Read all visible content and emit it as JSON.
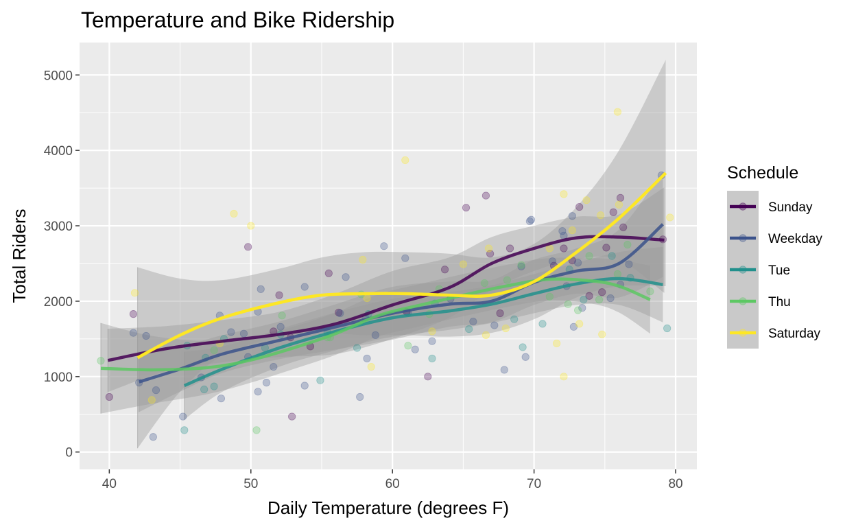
{
  "chart_data": {
    "type": "scatter",
    "title": "Temperature and Bike Ridership",
    "xlabel": "Daily Temperature (degrees F)",
    "ylabel": "Total Riders",
    "xlim": [
      37.9,
      81.5
    ],
    "ylim": [
      -230,
      5430
    ],
    "x_ticks": [
      40,
      50,
      60,
      70,
      80
    ],
    "y_ticks": [
      0,
      1000,
      2000,
      3000,
      4000,
      5000
    ],
    "grid": true,
    "legend": {
      "title": "Schedule",
      "placement": "right"
    },
    "series": [
      {
        "name": "Sunday",
        "color": "#440154",
        "points": [
          [
            40,
            730
          ],
          [
            41.7,
            1830
          ],
          [
            49.8,
            2720
          ],
          [
            51.6,
            1600
          ],
          [
            52,
            2080
          ],
          [
            52.8,
            1520
          ],
          [
            52.9,
            470
          ],
          [
            54.2,
            1400
          ],
          [
            55.5,
            2370
          ],
          [
            56.2,
            1850
          ],
          [
            61,
            1860
          ],
          [
            62.5,
            1000
          ],
          [
            63.7,
            2420
          ],
          [
            65.2,
            3240
          ],
          [
            66.6,
            3400
          ],
          [
            66.9,
            2630
          ],
          [
            67.6,
            1840
          ],
          [
            68.3,
            2700
          ],
          [
            71.4,
            2470
          ],
          [
            72.1,
            2700
          ],
          [
            72.7,
            2540
          ],
          [
            73.2,
            3250
          ],
          [
            73.9,
            2070
          ],
          [
            74.8,
            2120
          ],
          [
            75.1,
            2710
          ],
          [
            75.6,
            3180
          ],
          [
            76.1,
            3370
          ],
          [
            76.3,
            2980
          ],
          [
            79.1,
            2820
          ]
        ],
        "trend": [
          [
            39.9,
            1215
          ],
          [
            44,
            1370
          ],
          [
            48,
            1470
          ],
          [
            52,
            1560
          ],
          [
            56,
            1700
          ],
          [
            60,
            1950
          ],
          [
            64,
            2180
          ],
          [
            67,
            2500
          ],
          [
            70,
            2700
          ],
          [
            73,
            2840
          ],
          [
            76,
            2850
          ],
          [
            79.2,
            2810
          ]
        ],
        "band": [
          [
            39.9,
            420
          ],
          [
            44,
            300
          ],
          [
            48,
            280
          ],
          [
            52,
            300
          ],
          [
            56,
            400
          ],
          [
            60,
            450
          ],
          [
            64,
            400
          ],
          [
            67,
            350
          ],
          [
            70,
            300
          ],
          [
            73,
            280
          ],
          [
            76,
            300
          ],
          [
            79.2,
            700
          ]
        ]
      },
      {
        "name": "Weekday",
        "color": "#3b528b",
        "points": [
          [
            41.7,
            1580
          ],
          [
            42.1,
            920
          ],
          [
            42.6,
            1540
          ],
          [
            43.1,
            200
          ],
          [
            43.3,
            820
          ],
          [
            45.2,
            470
          ],
          [
            46.5,
            990
          ],
          [
            47.8,
            1810
          ],
          [
            47.9,
            710
          ],
          [
            48.6,
            1590
          ],
          [
            49.5,
            1570
          ],
          [
            49.8,
            1260
          ],
          [
            50.5,
            1860
          ],
          [
            50.5,
            800
          ],
          [
            50.7,
            2160
          ],
          [
            51.1,
            920
          ],
          [
            51.6,
            1130
          ],
          [
            52.1,
            1660
          ],
          [
            53.8,
            2190
          ],
          [
            53.8,
            880
          ],
          [
            56.3,
            1840
          ],
          [
            56.7,
            2320
          ],
          [
            57.7,
            730
          ],
          [
            58.1,
            1780
          ],
          [
            58.2,
            1240
          ],
          [
            58.8,
            1550
          ],
          [
            59.4,
            2730
          ],
          [
            60.9,
            2570
          ],
          [
            61.1,
            1850
          ],
          [
            61.6,
            1360
          ],
          [
            62.8,
            1470
          ],
          [
            64.1,
            2030
          ],
          [
            65.7,
            1730
          ],
          [
            67.2,
            1680
          ],
          [
            67.9,
            1090
          ],
          [
            69.1,
            2460
          ],
          [
            69.4,
            1260
          ],
          [
            69.7,
            3060
          ],
          [
            69.8,
            3080
          ],
          [
            71.3,
            2530
          ],
          [
            72,
            2930
          ],
          [
            72.1,
            2870
          ],
          [
            72.3,
            2200
          ],
          [
            72.7,
            3130
          ],
          [
            72.8,
            1660
          ],
          [
            73.1,
            2510
          ],
          [
            73.4,
            1910
          ],
          [
            75.4,
            2040
          ],
          [
            76.1,
            2220
          ],
          [
            76.7,
            2490
          ],
          [
            79,
            3670
          ]
        ],
        "trend": [
          [
            42.1,
            930
          ],
          [
            45,
            1100
          ],
          [
            48,
            1300
          ],
          [
            52,
            1480
          ],
          [
            56,
            1660
          ],
          [
            60,
            1840
          ],
          [
            64,
            1960
          ],
          [
            67,
            2000
          ],
          [
            70,
            2250
          ],
          [
            73,
            2400
          ],
          [
            76,
            2500
          ],
          [
            79.1,
            3020
          ]
        ],
        "band": [
          [
            42.1,
            400
          ],
          [
            45,
            300
          ],
          [
            48,
            250
          ],
          [
            52,
            250
          ],
          [
            56,
            300
          ],
          [
            60,
            350
          ],
          [
            64,
            300
          ],
          [
            67,
            280
          ],
          [
            70,
            300
          ],
          [
            73,
            300
          ],
          [
            76,
            450
          ],
          [
            79.1,
            700
          ]
        ]
      },
      {
        "name": "Tue",
        "color": "#21908c",
        "points": [
          [
            45.3,
            290
          ],
          [
            45.5,
            1410
          ],
          [
            46.7,
            830
          ],
          [
            46.8,
            1250
          ],
          [
            47.4,
            870
          ],
          [
            48.1,
            1500
          ],
          [
            51,
            1380
          ],
          [
            52.1,
            1560
          ],
          [
            54.9,
            950
          ],
          [
            55.4,
            1590
          ],
          [
            57.5,
            1380
          ],
          [
            58.3,
            1830
          ],
          [
            62.8,
            1240
          ],
          [
            63,
            1970
          ],
          [
            65.4,
            1630
          ],
          [
            68.6,
            1760
          ],
          [
            69.2,
            1390
          ],
          [
            70.6,
            1700
          ],
          [
            72.5,
            2420
          ],
          [
            73.5,
            2020
          ],
          [
            75.5,
            2600
          ],
          [
            76.8,
            2310
          ],
          [
            79.4,
            1640
          ]
        ],
        "trend": [
          [
            45.3,
            880
          ],
          [
            48,
            1100
          ],
          [
            52,
            1380
          ],
          [
            56,
            1600
          ],
          [
            60,
            1780
          ],
          [
            64,
            1870
          ],
          [
            67,
            1960
          ],
          [
            70,
            2100
          ],
          [
            73,
            2230
          ],
          [
            76,
            2300
          ],
          [
            79.1,
            2220
          ]
        ],
        "band": [
          [
            45.3,
            450
          ],
          [
            48,
            300
          ],
          [
            52,
            250
          ],
          [
            56,
            250
          ],
          [
            60,
            250
          ],
          [
            64,
            250
          ],
          [
            67,
            250
          ],
          [
            70,
            260
          ],
          [
            73,
            280
          ],
          [
            76,
            350
          ],
          [
            79.1,
            500
          ]
        ]
      },
      {
        "name": "Thu",
        "color": "#5dc863",
        "points": [
          [
            39.4,
            1210
          ],
          [
            47.4,
            1350
          ],
          [
            50.4,
            290
          ],
          [
            52.2,
            1810
          ],
          [
            55.4,
            1520
          ],
          [
            55.6,
            1520
          ],
          [
            57.8,
            2090
          ],
          [
            61.1,
            1410
          ],
          [
            62.6,
            1830
          ],
          [
            63.3,
            2160
          ],
          [
            66.5,
            2240
          ],
          [
            68.1,
            2280
          ],
          [
            69.1,
            2480
          ],
          [
            71.1,
            2060
          ],
          [
            72.4,
            1960
          ],
          [
            73.1,
            1880
          ],
          [
            73.9,
            2600
          ],
          [
            74.6,
            2020
          ],
          [
            75.9,
            2360
          ],
          [
            76.6,
            2750
          ],
          [
            78.2,
            2130
          ]
        ],
        "trend": [
          [
            39.4,
            1110
          ],
          [
            43,
            1090
          ],
          [
            47,
            1120
          ],
          [
            50,
            1220
          ],
          [
            53,
            1380
          ],
          [
            56,
            1570
          ],
          [
            59,
            1810
          ],
          [
            62,
            1950
          ],
          [
            65,
            2080
          ],
          [
            68,
            2200
          ],
          [
            71,
            2290
          ],
          [
            74,
            2270
          ],
          [
            76,
            2200
          ],
          [
            78.2,
            2020
          ]
        ],
        "band": [
          [
            39.4,
            600
          ],
          [
            43,
            450
          ],
          [
            47,
            350
          ],
          [
            50,
            300
          ],
          [
            53,
            280
          ],
          [
            56,
            280
          ],
          [
            59,
            280
          ],
          [
            62,
            280
          ],
          [
            65,
            280
          ],
          [
            68,
            280
          ],
          [
            71,
            280
          ],
          [
            74,
            300
          ],
          [
            76,
            350
          ],
          [
            78.2,
            450
          ]
        ]
      },
      {
        "name": "Saturday",
        "color": "#fde725",
        "points": [
          [
            41.8,
            2110
          ],
          [
            43,
            690
          ],
          [
            47.8,
            1440
          ],
          [
            48.8,
            3160
          ],
          [
            50,
            3000
          ],
          [
            57.9,
            2550
          ],
          [
            58.2,
            2040
          ],
          [
            58.5,
            1130
          ],
          [
            60.9,
            3870
          ],
          [
            62.8,
            1600
          ],
          [
            65,
            2490
          ],
          [
            66.6,
            1550
          ],
          [
            66.8,
            2700
          ],
          [
            68,
            1640
          ],
          [
            71.1,
            2700
          ],
          [
            71.6,
            1440
          ],
          [
            72.1,
            3420
          ],
          [
            72.1,
            1000
          ],
          [
            72.7,
            2940
          ],
          [
            73.2,
            1700
          ],
          [
            73.7,
            3340
          ],
          [
            74.7,
            3140
          ],
          [
            74.8,
            1560
          ],
          [
            75.9,
            4510
          ],
          [
            76,
            3280
          ],
          [
            79.6,
            3110
          ]
        ],
        "trend": [
          [
            42,
            1250
          ],
          [
            45,
            1550
          ],
          [
            48,
            1780
          ],
          [
            52,
            1980
          ],
          [
            55,
            2080
          ],
          [
            58,
            2100
          ],
          [
            61,
            2100
          ],
          [
            64,
            2080
          ],
          [
            67,
            2080
          ],
          [
            70,
            2260
          ],
          [
            73,
            2650
          ],
          [
            76,
            3100
          ],
          [
            79.3,
            3700
          ]
        ],
        "band": [
          [
            42,
            1200
          ],
          [
            45,
            750
          ],
          [
            48,
            500
          ],
          [
            52,
            450
          ],
          [
            55,
            500
          ],
          [
            58,
            550
          ],
          [
            61,
            550
          ],
          [
            64,
            550
          ],
          [
            67,
            500
          ],
          [
            70,
            500
          ],
          [
            73,
            600
          ],
          [
            76,
            900
          ],
          [
            79.3,
            1500
          ]
        ]
      }
    ]
  }
}
